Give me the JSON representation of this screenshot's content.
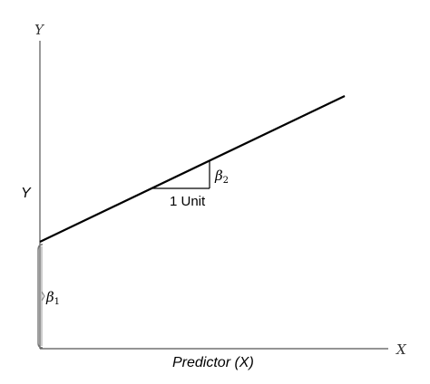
{
  "axes": {
    "y_axis_top_label": "Y",
    "x_axis_end_label": "X",
    "y_side_label": "Y",
    "x_axis_title": "Predictor (X)"
  },
  "annotations": {
    "run_label": "1 Unit",
    "slope_symbol": "β",
    "slope_subscript": "2",
    "intercept_symbol": "β",
    "intercept_subscript": "1"
  },
  "colors": {
    "line": "#000000",
    "axis": "#555555",
    "text": "#000000"
  }
}
